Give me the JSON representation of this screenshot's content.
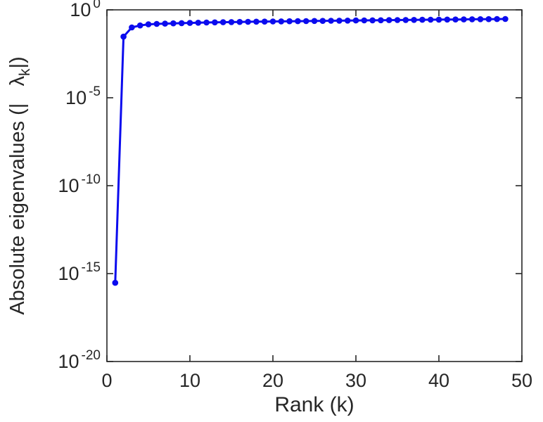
{
  "figure": {
    "background": "#ffffff",
    "ylabel_prefix": "Absolute eigenvalues (|   λ",
    "ylabel_sub": "k",
    "ylabel_suffix": "|)"
  },
  "chart_data": {
    "type": "line",
    "title": "",
    "xlabel": "Rank (k)",
    "ylabel": "Absolute eigenvalues (|λ_k|)",
    "x": [
      1,
      2,
      3,
      4,
      5,
      6,
      7,
      8,
      9,
      10,
      11,
      12,
      13,
      14,
      15,
      16,
      17,
      18,
      19,
      20,
      21,
      22,
      23,
      24,
      25,
      26,
      27,
      28,
      29,
      30,
      31,
      32,
      33,
      34,
      35,
      36,
      37,
      38,
      39,
      40,
      41,
      42,
      43,
      44,
      45,
      46,
      47,
      48
    ],
    "y": [
      3e-16,
      0.03,
      0.1,
      0.13,
      0.15,
      0.158,
      0.165,
      0.171,
      0.176,
      0.181,
      0.186,
      0.19,
      0.194,
      0.198,
      0.202,
      0.206,
      0.209,
      0.212,
      0.215,
      0.218,
      0.221,
      0.224,
      0.227,
      0.23,
      0.233,
      0.236,
      0.239,
      0.242,
      0.245,
      0.248,
      0.251,
      0.254,
      0.257,
      0.26,
      0.263,
      0.266,
      0.269,
      0.272,
      0.275,
      0.278,
      0.281,
      0.284,
      0.287,
      0.29,
      0.293,
      0.296,
      0.299,
      0.302
    ],
    "xlim": [
      0,
      50
    ],
    "ylim_exponents": [
      -20,
      0
    ],
    "xticks": [
      0,
      10,
      20,
      30,
      40,
      50
    ],
    "ytick_base": "10",
    "ytick_exponents": [
      "0",
      "-5",
      "-10",
      "-15",
      "-20"
    ],
    "ytick_exponent_values": [
      0,
      -5,
      -10,
      -15,
      -20
    ],
    "yscale": "log",
    "grid": false,
    "legend": null,
    "line_color": "#0b0bee",
    "marker": "circle",
    "marker_color": "#0b0bee",
    "axis_color": "#262626"
  }
}
